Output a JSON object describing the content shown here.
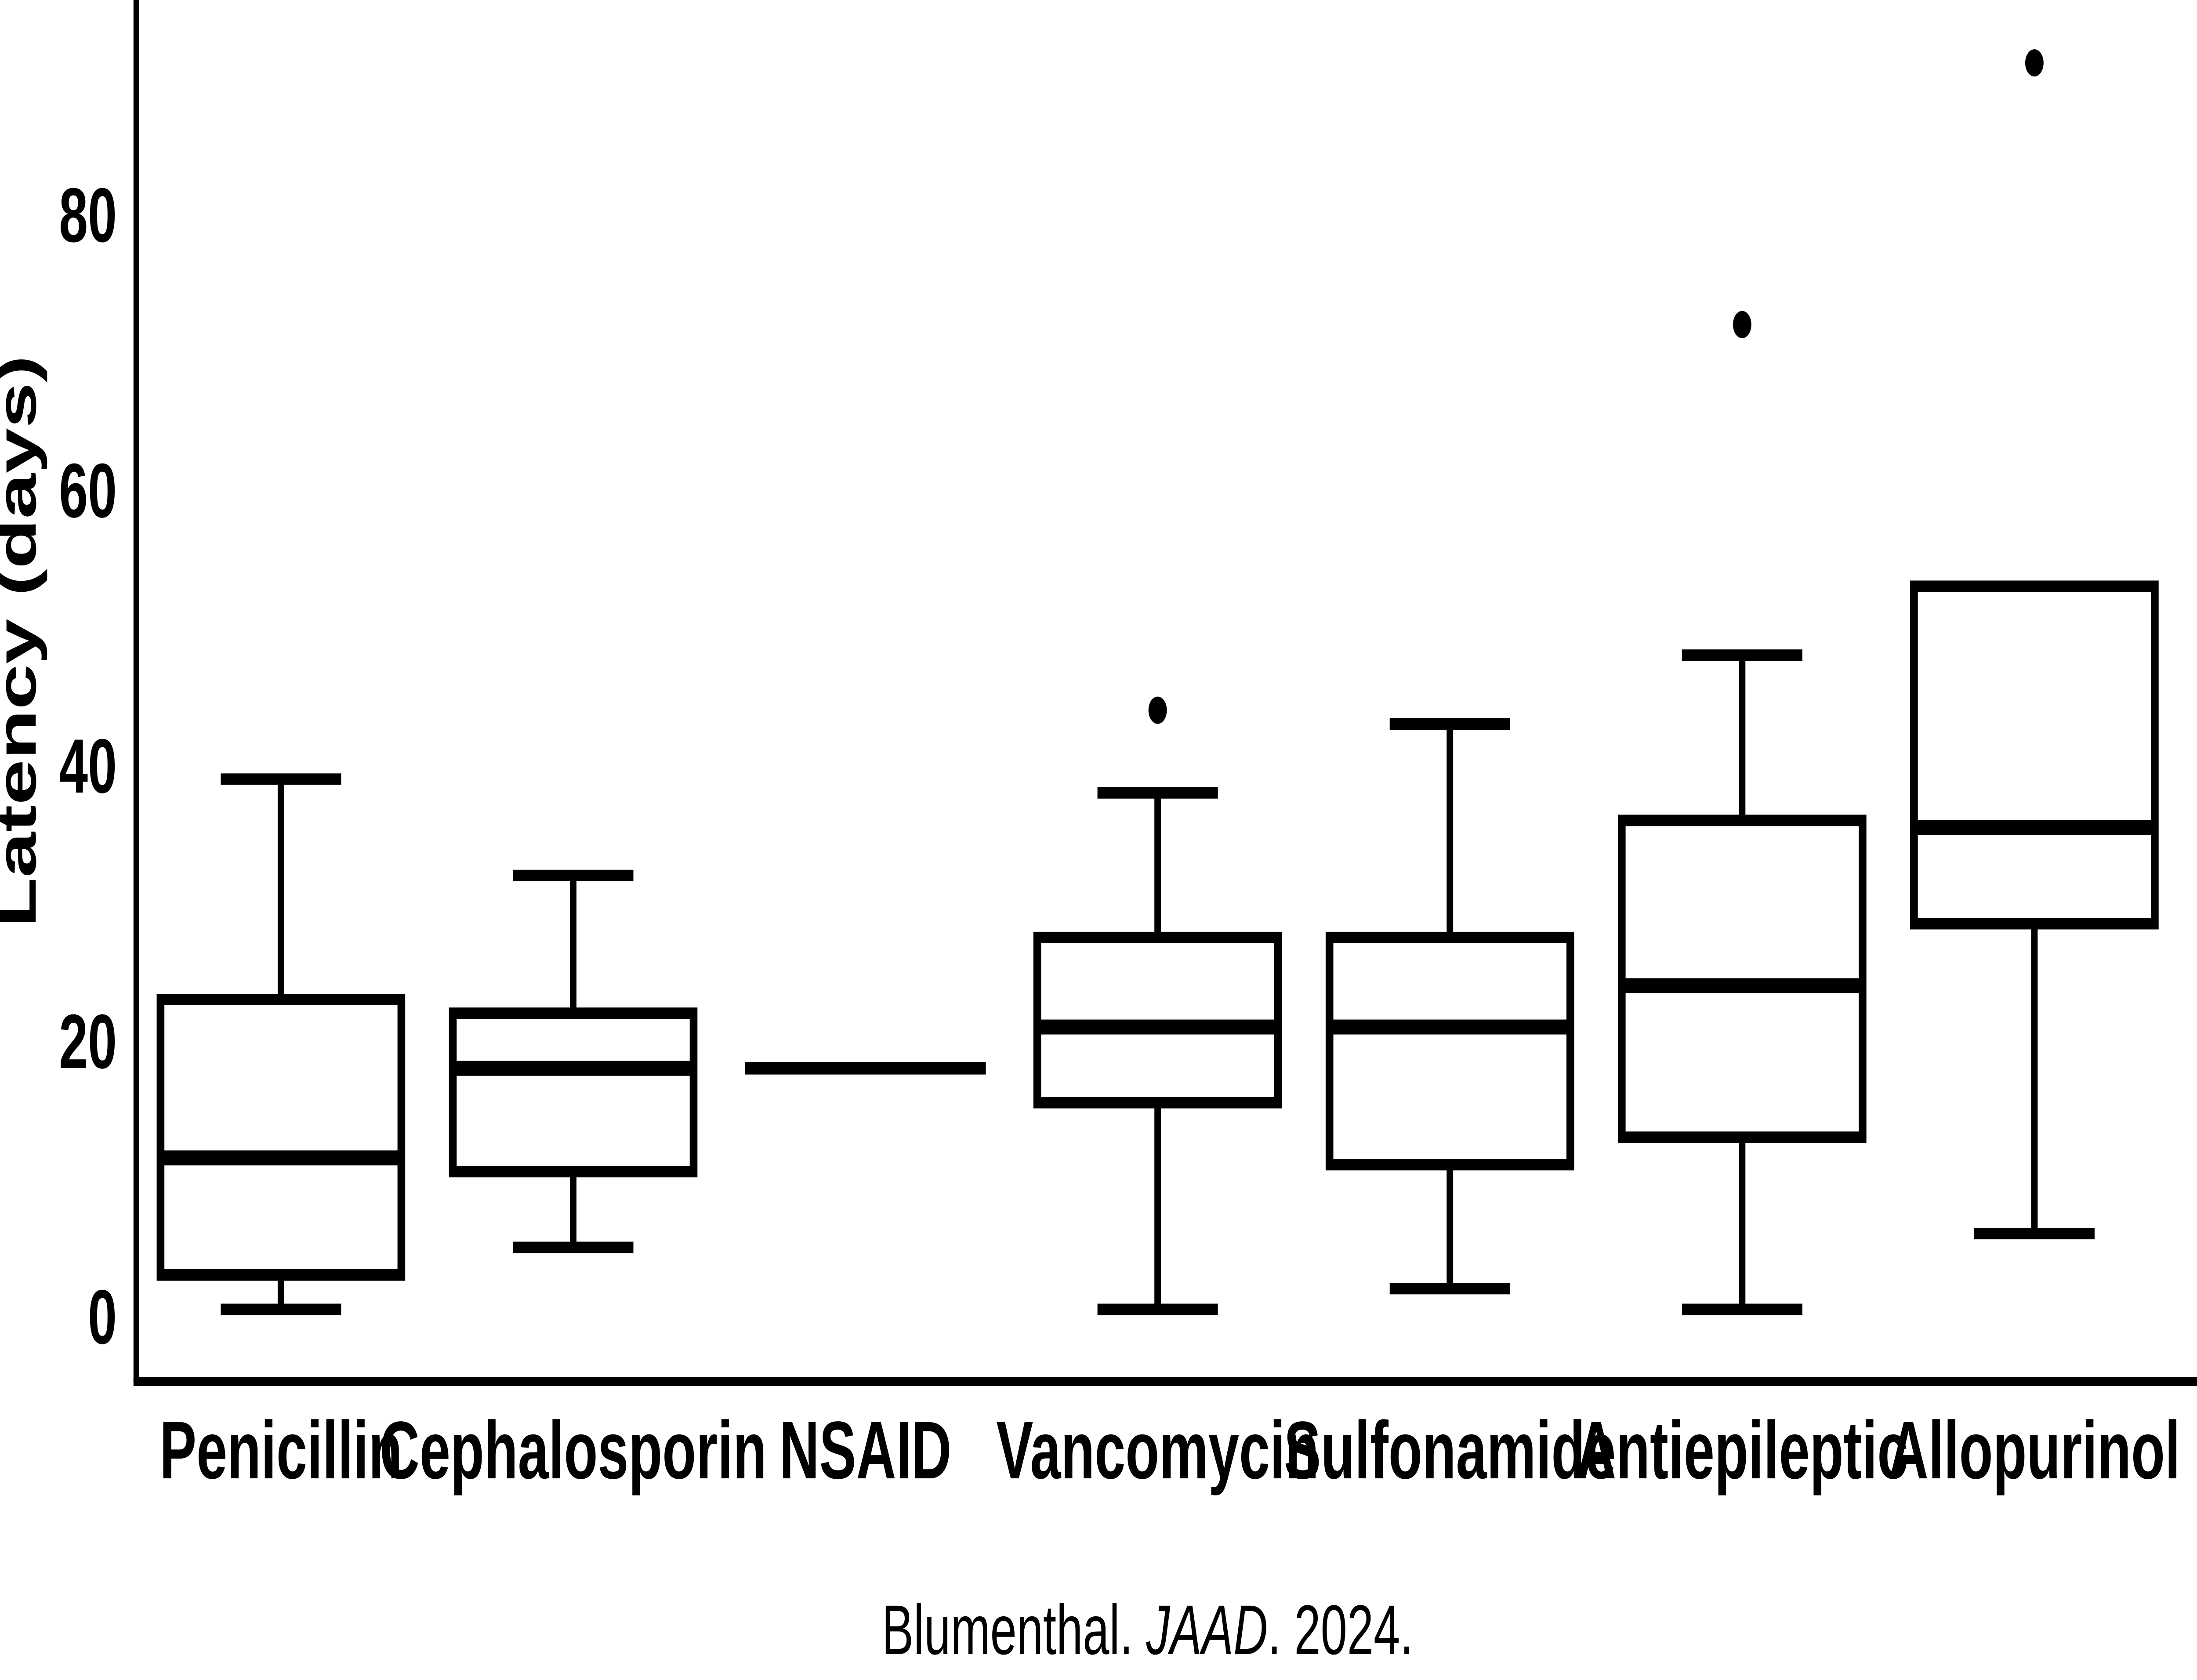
{
  "chart_data": {
    "type": "boxplot",
    "title": "",
    "xlabel": "",
    "ylabel": "Latency (days)",
    "ylim": [
      0,
      95.5
    ],
    "yticks": [
      0,
      20,
      40,
      60,
      80
    ],
    "grid": false,
    "legend": false,
    "categories": [
      "Penicillin",
      "Cephalosporin",
      "NSAID",
      "Vancomycin",
      "Sulfonamide",
      "Antiepileptic",
      "Allopurinol"
    ],
    "series": [
      {
        "name": "Penicillin",
        "whisker_low": 0.5,
        "q1": 3,
        "median": 11.5,
        "q3": 23,
        "whisker_high": 39,
        "outliers": []
      },
      {
        "name": "Cephalosporin",
        "whisker_low": 5,
        "q1": 10.5,
        "median": 18,
        "q3": 22,
        "whisker_high": 32,
        "outliers": []
      },
      {
        "name": "NSAID",
        "whisker_low": null,
        "q1": 18,
        "median": 18,
        "q3": 18,
        "whisker_high": null,
        "outliers": []
      },
      {
        "name": "Vancomycin",
        "whisker_low": 0.5,
        "q1": 15.5,
        "median": 21,
        "q3": 27.5,
        "whisker_high": 38,
        "outliers": [
          44
        ]
      },
      {
        "name": "Sulfonamide",
        "whisker_low": 2,
        "q1": 11,
        "median": 21,
        "q3": 27.5,
        "whisker_high": 43,
        "outliers": []
      },
      {
        "name": "Antiepileptic",
        "whisker_low": 0.5,
        "q1": 13,
        "median": 24,
        "q3": 36,
        "whisker_high": 48,
        "outliers": [
          72
        ]
      },
      {
        "name": "Allopurinol",
        "whisker_low": 6,
        "q1": 28.5,
        "median": 35.5,
        "q3": 53,
        "whisker_high": null,
        "outliers": [
          91
        ]
      }
    ]
  },
  "caption": {
    "part1": "Blumenthal. ",
    "part2": "JAAD",
    "part3": ". 2024."
  },
  "colors": {
    "foreground": "#000000",
    "background": "#ffffff"
  }
}
